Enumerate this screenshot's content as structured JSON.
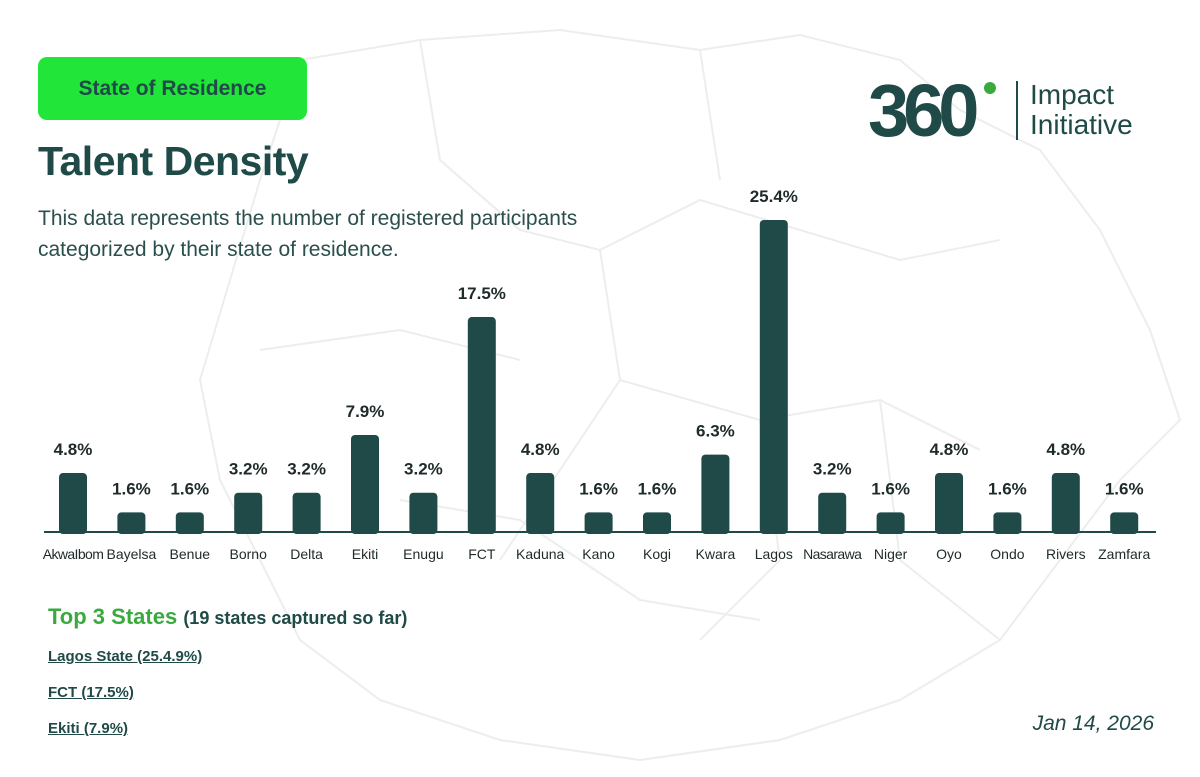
{
  "header": {
    "badge_label": "State of Residence",
    "title": "Talent Density",
    "subtitle_line1": "This data represents the number of registered participants",
    "subtitle_line2": "categorized by their state of residence."
  },
  "logo": {
    "mark": "360",
    "text_line1": "Impact",
    "text_line2": "Initiative"
  },
  "colors": {
    "brand_green": "#22e53a",
    "bar_color": "#1f4a47",
    "accent_green": "#3aaa3f"
  },
  "chart_data": {
    "type": "bar",
    "categories": [
      "AkwaIbom",
      "Bayelsa",
      "Benue",
      "Borno",
      "Delta",
      "Ekiti",
      "Enugu",
      "FCT",
      "Kaduna",
      "Kano",
      "Kogi",
      "Kwara",
      "Lagos",
      "Nasarawa",
      "Niger",
      "Oyo",
      "Ondo",
      "Rivers",
      "Zamfara"
    ],
    "values": [
      4.8,
      1.6,
      1.6,
      3.2,
      3.2,
      7.9,
      3.2,
      17.5,
      4.8,
      1.6,
      1.6,
      6.3,
      25.4,
      3.2,
      1.6,
      4.8,
      1.6,
      4.8,
      1.6
    ],
    "labels": [
      "4.8%",
      "1.6%",
      "1.6%",
      "3.2%",
      "3.2%",
      "7.9%",
      "3.2%",
      "17.5%",
      "4.8%",
      "1.6%",
      "1.6%",
      "6.3%",
      "25.4%",
      "3.2%",
      "1.6%",
      "4.8%",
      "1.6%",
      "4.8%",
      "1.6%"
    ],
    "unit": "%",
    "grid": false,
    "ylim": [
      0,
      25.4
    ]
  },
  "top_states": {
    "heading_lead": "Top 3 States",
    "heading_tail": "(19 states captured so far)",
    "items": [
      "Lagos State (25.4.9%)",
      "FCT (17.5%)",
      "Ekiti (7.9%)"
    ]
  },
  "date": "Jan 14, 2026"
}
